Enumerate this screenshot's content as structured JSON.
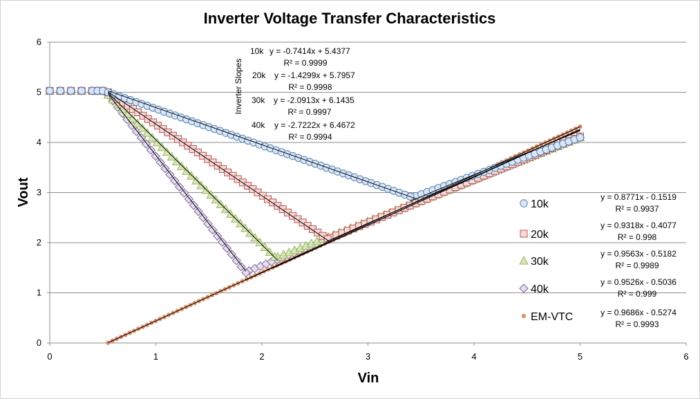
{
  "chart_data": {
    "type": "scatter",
    "title": "Inverter Voltage Transfer Characteristics",
    "xlabel": "Vin",
    "ylabel": "Vout",
    "xlim": [
      0,
      6
    ],
    "ylim": [
      0,
      6
    ],
    "xticks": [
      "0",
      "1",
      "2",
      "3",
      "4",
      "5",
      "6"
    ],
    "yticks": [
      "0",
      "1",
      "2",
      "3",
      "4",
      "5",
      "6"
    ],
    "grid": "horizontal major gridlines",
    "legend_position": "right",
    "annotation_title": "Inverter Slopes",
    "series": [
      {
        "name": "10k",
        "marker": "circle",
        "color": "#4F81BD",
        "fill": "#DCE6F2",
        "plateau": {
          "x": [
            0.0,
            0.1,
            0.2,
            0.3,
            0.4,
            0.45,
            0.5
          ],
          "y": 5.03
        },
        "transition": {
          "x_start": 0.55,
          "x_end": 3.4,
          "y_start": 5.0,
          "y_end": 2.92,
          "count": 55
        },
        "tail": {
          "x_start": 3.45,
          "x_end": 5.0,
          "y_start": 2.93,
          "y_end": 4.1,
          "count": 30
        },
        "fit_upper": {
          "equation": "y = -0.7414x + 5.4377",
          "r2": "R² = 0.9999",
          "slope": -0.7414,
          "intercept": 5.4377,
          "x_range": [
            0.55,
            3.45
          ]
        },
        "fit_lower": {
          "equation": "y = 0.8771x - 0.1519",
          "r2": "R² = 0.9937",
          "slope": 0.8771,
          "intercept": -0.1519,
          "x_range": [
            3.4,
            5.0
          ]
        }
      },
      {
        "name": "20k",
        "marker": "square",
        "color": "#C0504D",
        "fill": "#F2DCDB",
        "plateau": {
          "x": [
            0.0,
            0.1,
            0.2,
            0.3,
            0.4,
            0.45,
            0.5
          ],
          "y": 5.03
        },
        "transition": {
          "x_start": 0.55,
          "x_end": 2.62,
          "y_start": 5.0,
          "y_end": 2.07,
          "count": 45
        },
        "tail": {
          "x_start": 2.65,
          "x_end": 5.0,
          "y_start": 2.1,
          "y_end": 4.12,
          "count": 45
        },
        "fit_upper": {
          "equation": "y = -1.4299x + 5.7957",
          "r2": "R² = 0.9998",
          "slope": -1.4299,
          "intercept": 5.7957,
          "x_range": [
            0.55,
            2.65
          ]
        },
        "fit_lower": {
          "equation": "y = 0.9318x - 0.4077",
          "r2": "R² = 0.998",
          "slope": 0.9318,
          "intercept": -0.4077,
          "x_range": [
            2.6,
            5.0
          ]
        }
      },
      {
        "name": "30k",
        "marker": "triangle",
        "color": "#9BBB59",
        "fill": "#D7E4BD",
        "plateau": {
          "x": [
            0.0,
            0.1,
            0.2,
            0.3,
            0.4,
            0.45,
            0.5
          ],
          "y": 5.03
        },
        "transition": {
          "x_start": 0.55,
          "x_end": 2.12,
          "y_start": 4.95,
          "y_end": 1.72,
          "count": 35
        },
        "tail": {
          "x_start": 2.15,
          "x_end": 5.0,
          "y_start": 1.72,
          "y_end": 4.1,
          "count": 55
        },
        "fit_upper": {
          "equation": "y = -2.0913x + 6.1435",
          "r2": "R² = 0.9997",
          "slope": -2.0913,
          "intercept": 6.1435,
          "x_range": [
            0.55,
            2.15
          ]
        },
        "fit_lower": {
          "equation": "y = 0.9563x - 0.5182",
          "r2": "R² = 0.9989",
          "slope": 0.9563,
          "intercept": -0.5182,
          "x_range": [
            2.1,
            5.0
          ]
        }
      },
      {
        "name": "40k",
        "marker": "diamond",
        "color": "#8064A2",
        "fill": "#E6E0EC",
        "plateau": {
          "x": [
            0.0,
            0.1,
            0.2,
            0.3,
            0.4,
            0.45,
            0.5
          ],
          "y": 5.03
        },
        "transition": {
          "x_start": 0.55,
          "x_end": 1.85,
          "y_start": 4.95,
          "y_end": 1.4,
          "count": 30
        },
        "tail": {
          "x_start": 1.88,
          "x_end": 5.0,
          "y_start": 1.44,
          "y_end": 4.1,
          "count": 60
        },
        "fit_upper": {
          "equation": "y = -2.7222x + 6.4672",
          "r2": "R² = 0.9994",
          "slope": -2.7222,
          "intercept": 6.4672,
          "x_range": [
            0.55,
            1.85
          ]
        },
        "fit_lower": {
          "equation": "y = 0.9526x - 0.5036",
          "r2": "R² = 0.999",
          "slope": 0.9526,
          "intercept": -0.5036,
          "x_range": [
            1.85,
            5.0
          ]
        }
      },
      {
        "name": "EM-VTC",
        "marker": "dot",
        "color": "#E0926B",
        "fill": "#E0926B",
        "line": {
          "x_start": 0.55,
          "x_end": 5.0,
          "count": 110
        },
        "fit": {
          "equation": "y = 0.9686x - 0.5274",
          "r2": "R² = 0.9993",
          "slope": 0.9686,
          "intercept": -0.5274,
          "x_range": [
            0.55,
            5.0
          ]
        }
      }
    ]
  }
}
